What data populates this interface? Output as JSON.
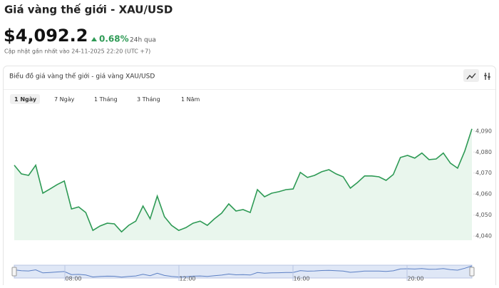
{
  "header": {
    "title": "Giá vàng thế giới - XAU/USD",
    "price": "$4,092.2",
    "change": "0.68%",
    "period": "24h qua",
    "updated": "Cập nhật gần nhất vào 24-11-2025 22:20 (UTC +7)"
  },
  "card": {
    "title": "Biểu đồ giá vàng thế giới - giá vàng XAU/USD",
    "tabs": [
      "1 Ngày",
      "7 Ngày",
      "1 Tháng",
      "3 Tháng",
      "1 Năm"
    ]
  },
  "navigator": {
    "labels": [
      "08:00",
      "12:00",
      "16:00",
      "20:00"
    ]
  },
  "chart_data": {
    "type": "line",
    "categories": [
      null,
      null,
      null,
      null,
      null,
      null,
      null,
      null,
      null,
      null,
      null,
      null,
      null,
      null,
      null,
      null,
      null,
      null,
      null,
      null,
      null,
      null,
      null,
      null,
      null,
      null,
      null,
      null,
      null,
      null,
      null,
      null,
      null,
      null,
      null,
      null,
      null,
      null,
      null,
      null,
      null,
      null,
      null,
      null,
      null,
      null,
      null,
      null,
      null,
      null,
      null,
      null,
      null,
      null,
      null,
      null,
      null,
      null,
      null,
      null,
      null,
      null,
      null,
      null,
      null
    ],
    "series": [
      {
        "color": "#2e9a55",
        "values": [
          4073.7,
          4069.6,
          4068.9,
          4073.7,
          4060.4,
          4062.4,
          4064.5,
          4066.2,
          4052.9,
          4053.9,
          4051.2,
          4042.7,
          4044.8,
          4046.1,
          4045.8,
          4042.0,
          4045.1,
          4047.1,
          4054.3,
          4048.2,
          4059.0,
          4049.2,
          4045.1,
          4042.7,
          4044.0,
          4046.1,
          4047.1,
          4045.1,
          4048.2,
          4050.9,
          4055.3,
          4051.9,
          4052.6,
          4051.2,
          4062.1,
          4058.7,
          4060.4,
          4061.1,
          4062.1,
          4062.4,
          4070.3,
          4067.9,
          4068.9,
          4070.6,
          4071.6,
          4069.6,
          4068.2,
          4062.8,
          4065.5,
          4068.6,
          4068.6,
          4068.2,
          4066.5,
          4069.3,
          4077.4,
          4078.4,
          4077.1,
          4079.5,
          4076.4,
          4076.7,
          4079.5,
          4074.7,
          4072.3,
          4080.5,
          4091.0
        ]
      }
    ],
    "ylim": [
      4038,
      4094
    ],
    "yticks": [
      {
        "value": 4040,
        "label": "4,040"
      },
      {
        "value": 4050,
        "label": "4,050"
      },
      {
        "value": 4060,
        "label": "4,060"
      },
      {
        "value": 4070,
        "label": "4,070"
      },
      {
        "value": 4080,
        "label": "4,080"
      },
      {
        "value": 4090,
        "label": "4,090"
      }
    ]
  }
}
